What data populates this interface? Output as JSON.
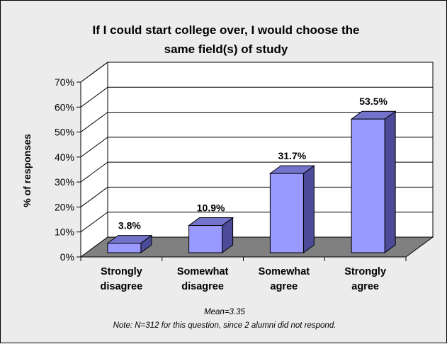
{
  "chart_data": {
    "type": "bar",
    "title": [
      "If I could start college over, I would choose the",
      "same field(s) of study"
    ],
    "ylabel": "% of responses",
    "xlabel": "",
    "categories": [
      [
        "Strongly",
        "disagree"
      ],
      [
        "Somewhat",
        "disagree"
      ],
      [
        "Somewhat",
        "agree"
      ],
      [
        "Strongly",
        "agree"
      ]
    ],
    "values": [
      3.8,
      10.9,
      31.7,
      53.5
    ],
    "data_labels": [
      "3.8%",
      "10.9%",
      "31.7%",
      "53.5%"
    ],
    "ylim": [
      0,
      70
    ],
    "yticks": [
      "0%",
      "10%",
      "20%",
      "30%",
      "40%",
      "50%",
      "60%",
      "70%"
    ],
    "grid": true,
    "style": "3d-column",
    "colors": {
      "bar_front": "#9999ff",
      "bar_side": "#4b4b99",
      "bar_top": "#7373cc",
      "floor": "#808080",
      "plot_bg": "#ffffff",
      "chart_bg": "#ececec"
    },
    "notes": [
      "Mean=3.35",
      "Note: N=312 for this question, since 2 alumni did not respond."
    ]
  }
}
